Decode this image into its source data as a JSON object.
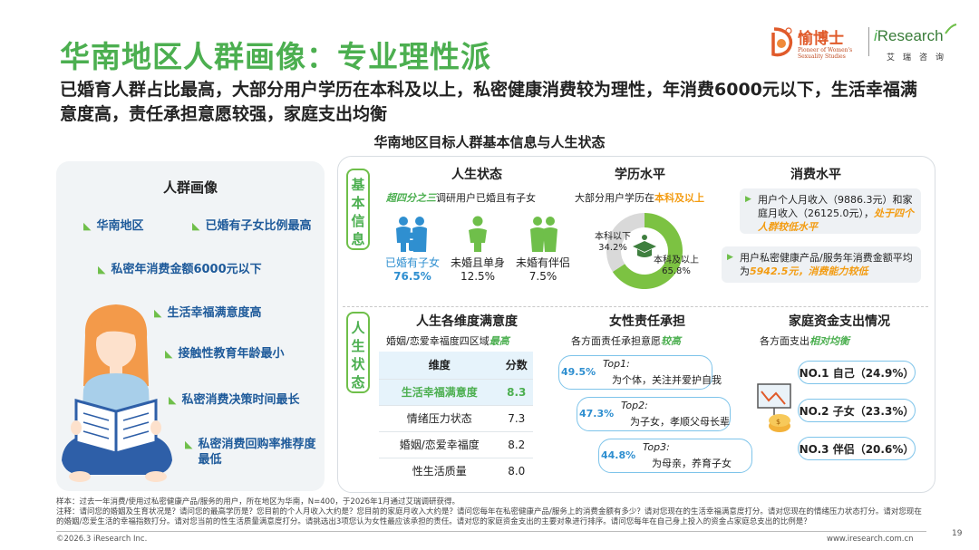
{
  "header": {
    "title": "华南地区人群画像：专业理性派",
    "subtitle": "已婚育人群占比最高，大部分用户学历在本科及以上，私密健康消费较为理性，年消费6000元以下，生活幸福满意度高，责任承担意愿较强，家庭支出均衡",
    "center_title": "华南地区目标人群基本信息与人生状态"
  },
  "logos": {
    "yu_name": "愉博士",
    "yu_tagline": "Pioneer of Women's Sexuality Studies",
    "ir_i": "i",
    "ir_rest": "Research",
    "ir_cn": "艾瑞咨询"
  },
  "portrait": {
    "title": "人群画像",
    "tags": [
      "华南地区",
      "已婚有子女比例最高",
      "私密年消费金额6000元以下",
      "生活幸福满意度高",
      "接触性教育年龄最小",
      "私密消费决策时间最长",
      "私密消费回购率推荐度最低"
    ]
  },
  "sections": {
    "basic_label": "基本信息",
    "life_label": "人生状态"
  },
  "life_status": {
    "title": "人生状态",
    "desc_hl": "超四分之三",
    "desc_rest": "调研用户已婚且有子女",
    "groups": [
      {
        "label": "已婚有子女",
        "pct": "76.5%",
        "color": "#2f8fd0"
      },
      {
        "label": "未婚且单身",
        "pct": "12.5%",
        "color": "#6fbf4a"
      },
      {
        "label": "未婚有伴侣",
        "pct": "7.5%",
        "color": "#6fbf4a"
      }
    ]
  },
  "education": {
    "title": "学历水平",
    "desc_pre": "大部分用户学历在",
    "desc_hl": "本科及以上",
    "below_label": "本科以下",
    "below_pct": "34.2%",
    "below_value": 34.2,
    "above_label": "本科及以上",
    "above_pct": "65.8%",
    "above_value": 65.8
  },
  "consumption": {
    "title": "消费水平",
    "box1_pre": "用户个人月收入（9886.3元）和家庭月收入（26125.0元），",
    "box1_hl": "处于四个人群较低水平",
    "box2_pre": "用户私密健康产品/服务年消费金额平均为",
    "box2_hl": "5942.5元，消费能力较低"
  },
  "satisfaction": {
    "title": "人生各维度满意度",
    "desc_pre": "婚姻/恋爱幸福度四区域",
    "desc_hl": "最高",
    "headers": [
      "维度",
      "分数"
    ],
    "rows": [
      {
        "dim": "生活幸福满意度",
        "score": "8.3"
      },
      {
        "dim": "情绪压力状态",
        "score": "7.3"
      },
      {
        "dim": "婚姻/恋爱幸福度",
        "score": "8.2"
      },
      {
        "dim": "性生活质量",
        "score": "8.0"
      }
    ]
  },
  "responsibility": {
    "title": "女性责任承担",
    "desc_pre": "各方面责任承担意愿",
    "desc_hl": "较高",
    "items": [
      {
        "pct": "49.5%",
        "top": "Top1:",
        "desc": "为个体，关注并爱护自我"
      },
      {
        "pct": "47.3%",
        "top": "Top2:",
        "desc": "为子女，孝顺父母长辈"
      },
      {
        "pct": "44.8%",
        "top": "Top3:",
        "desc": "为母亲，养育子女"
      }
    ]
  },
  "spending": {
    "title": "家庭资金支出情况",
    "desc_pre": "各方面支出",
    "desc_hl": "相对均衡",
    "items": [
      "NO.1  自己（24.9%）",
      "NO.2  子女（23.3%）",
      "NO.3  伴侣（20.6%）"
    ]
  },
  "footer": {
    "sample": "样本：过去一年消费/使用过私密健康产品/服务的用户，所在地区为华南，N=400，于2026年1月通过艾瑞调研获得。",
    "note": "注释：请问您的婚姻及生育状况是？请问您的最高学历是？您目前的个人月收入大约是？您目前的家庭月收入大约是？请问您每年在私密健康产品/服务上的消费金额有多少？请对您现在的生活幸福满意度打分。请对您现在的情绪压力状态打分。请对您现在的婚姻/恋爱生活的幸福指数打分。请对您当前的性生活质量满意度打分。请挑选出3项您认为女性最应该承担的责任。请对您的家庭资金支出的主要对象进行排序。请问您每年在自己身上投入的资金占家庭总支出的比例是？",
    "copyright": "©2026.3 iResearch Inc.",
    "url": "www.iresearch.com.cn",
    "page": "19"
  }
}
